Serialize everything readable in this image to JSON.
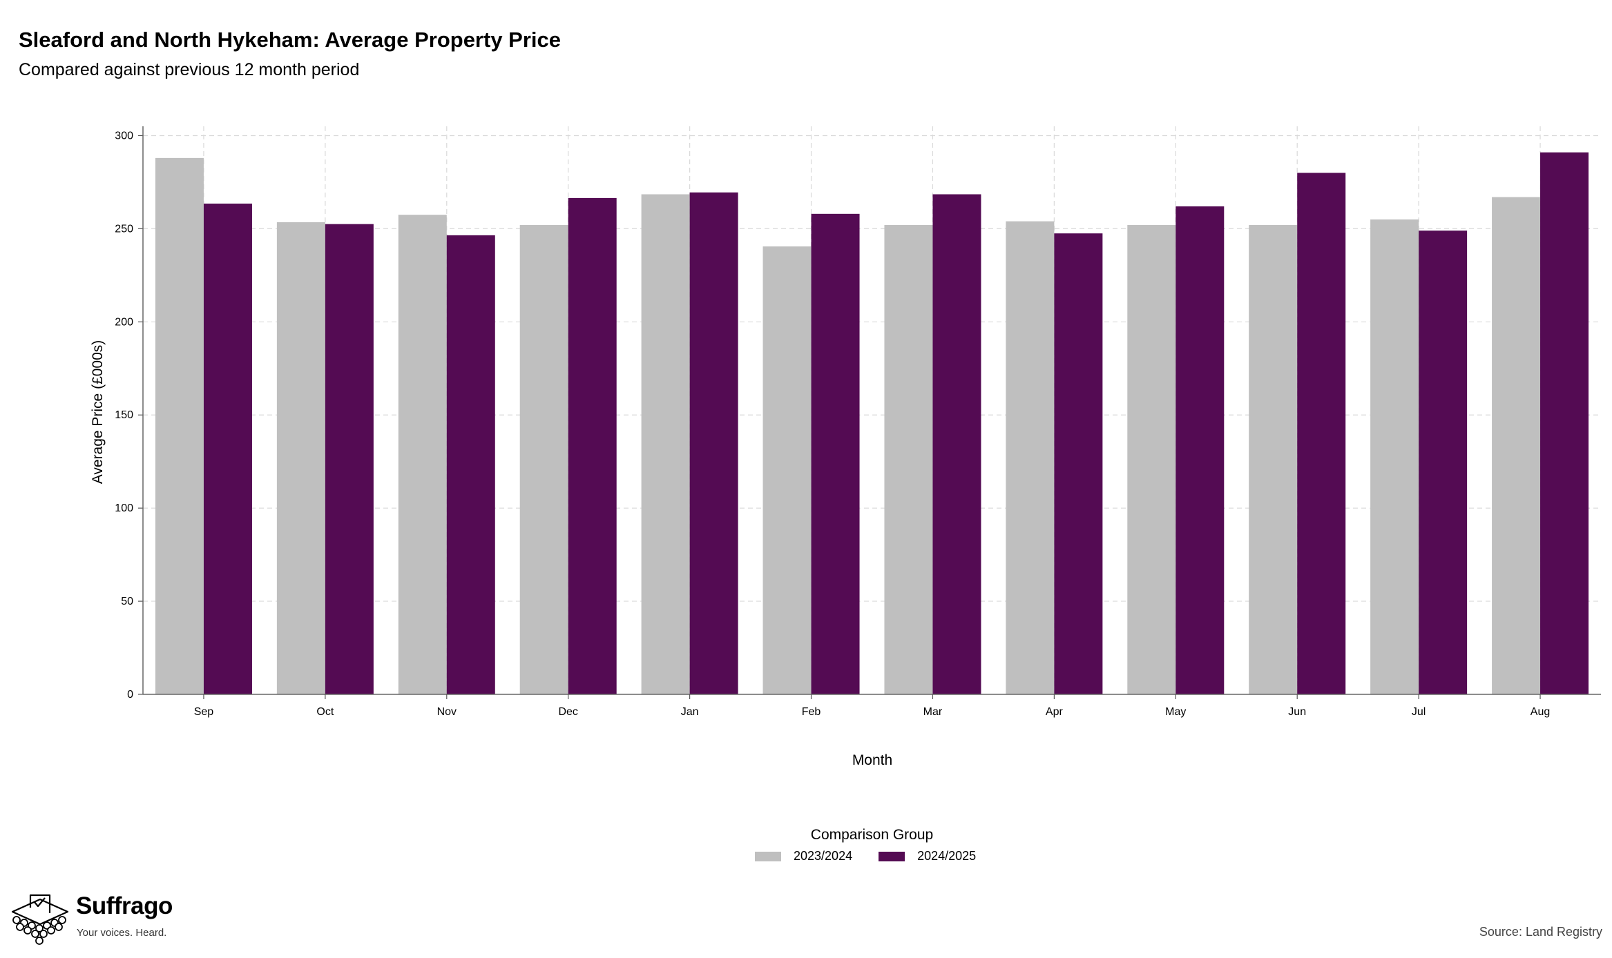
{
  "chart_data": {
    "type": "bar",
    "title": "Sleaford and North Hykeham: Average Property Price",
    "subtitle": "Compared against previous 12 month period",
    "xlabel": "Month",
    "ylabel": "Average Price (£000s)",
    "categories": [
      "Sep",
      "Oct",
      "Nov",
      "Dec",
      "Jan",
      "Feb",
      "Mar",
      "Apr",
      "May",
      "Jun",
      "Jul",
      "Aug"
    ],
    "series": [
      {
        "name": "2023/2024",
        "color": "#bfbfbf",
        "values": [
          288,
          253.5,
          257.5,
          252,
          268.5,
          240.5,
          252,
          254,
          252,
          252,
          255,
          267
        ]
      },
      {
        "name": "2024/2025",
        "color": "#540b53",
        "values": [
          263.5,
          252.5,
          246.5,
          266.5,
          269.5,
          258,
          268.5,
          247.5,
          262,
          280,
          249,
          291
        ]
      }
    ],
    "ylim": [
      0,
      305
    ],
    "yticks": [
      0,
      50,
      100,
      150,
      200,
      250,
      300
    ],
    "grid": true,
    "legend_title": "Comparison Group",
    "legend_position": "bottom"
  },
  "branding": {
    "name": "Suffrago",
    "tagline": "Your voices. Heard."
  },
  "source": "Source: Land Registry"
}
